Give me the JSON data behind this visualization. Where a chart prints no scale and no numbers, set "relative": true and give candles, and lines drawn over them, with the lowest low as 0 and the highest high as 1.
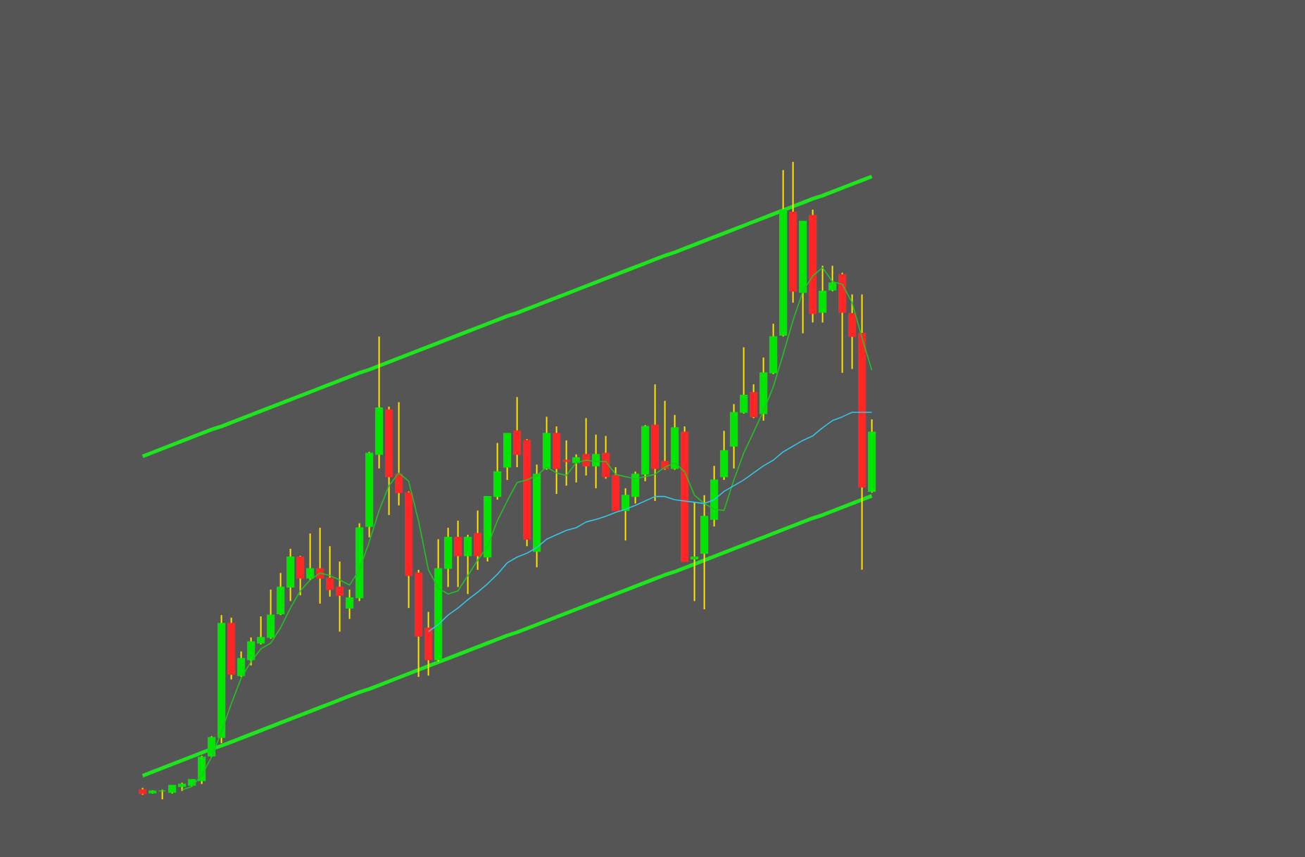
{
  "chart_data": {
    "type": "candlestick",
    "relative": true,
    "categories": [
      null,
      null,
      null,
      null,
      null,
      null,
      null,
      null,
      null,
      null,
      null,
      null,
      null,
      null,
      null,
      null,
      null,
      null,
      null,
      null,
      null,
      null,
      null,
      null,
      null,
      null,
      null,
      null,
      null,
      null,
      null,
      null,
      null,
      null,
      null,
      null,
      null,
      null,
      null,
      null,
      null,
      null,
      null,
      null,
      null,
      null,
      null,
      null,
      null,
      null,
      null,
      null,
      null,
      null,
      null,
      null,
      null,
      null,
      null,
      null,
      null,
      null,
      null,
      null,
      null,
      null,
      null,
      null,
      null,
      null,
      null,
      null,
      null,
      null,
      null
    ],
    "ohlc": [
      [
        0.015,
        0.018,
        0.007,
        0.009
      ],
      [
        0.01,
        0.014,
        0.009,
        0.013
      ],
      [
        0.013,
        0.015,
        0.0,
        0.013
      ],
      [
        0.011,
        0.022,
        0.009,
        0.022
      ],
      [
        0.02,
        0.026,
        0.013,
        0.024
      ],
      [
        0.022,
        0.031,
        0.02,
        0.031
      ],
      [
        0.029,
        0.068,
        0.024,
        0.066
      ],
      [
        0.068,
        0.099,
        0.066,
        0.097
      ],
      [
        0.097,
        0.289,
        0.088,
        0.276
      ],
      [
        0.276,
        0.285,
        0.188,
        0.196
      ],
      [
        0.194,
        0.232,
        0.192,
        0.221
      ],
      [
        0.219,
        0.254,
        0.21,
        0.247
      ],
      [
        0.245,
        0.287,
        0.243,
        0.254
      ],
      [
        0.254,
        0.329,
        0.252,
        0.289
      ],
      [
        0.291,
        0.355,
        0.289,
        0.333
      ],
      [
        0.333,
        0.393,
        0.311,
        0.38
      ],
      [
        0.38,
        0.382,
        0.32,
        0.347
      ],
      [
        0.347,
        0.417,
        0.344,
        0.362
      ],
      [
        0.362,
        0.426,
        0.307,
        0.347
      ],
      [
        0.347,
        0.397,
        0.318,
        0.329
      ],
      [
        0.333,
        0.373,
        0.263,
        0.32
      ],
      [
        0.3,
        0.329,
        0.283,
        0.316
      ],
      [
        0.316,
        0.433,
        0.311,
        0.426
      ],
      [
        0.428,
        0.545,
        0.411,
        0.543
      ],
      [
        0.541,
        0.726,
        0.519,
        0.614
      ],
      [
        0.611,
        0.616,
        0.446,
        0.506
      ],
      [
        0.51,
        0.623,
        0.461,
        0.481
      ],
      [
        0.481,
        0.483,
        0.3,
        0.351
      ],
      [
        0.355,
        0.36,
        0.192,
        0.256
      ],
      [
        0.269,
        0.294,
        0.194,
        0.219
      ],
      [
        0.219,
        0.408,
        0.216,
        0.362
      ],
      [
        0.362,
        0.426,
        0.333,
        0.411
      ],
      [
        0.411,
        0.437,
        0.333,
        0.382
      ],
      [
        0.382,
        0.415,
        0.322,
        0.411
      ],
      [
        0.417,
        0.453,
        0.36,
        0.382
      ],
      [
        0.38,
        0.475,
        0.373,
        0.475
      ],
      [
        0.475,
        0.559,
        0.47,
        0.514
      ],
      [
        0.521,
        0.574,
        0.501,
        0.574
      ],
      [
        0.578,
        0.631,
        0.521,
        0.541
      ],
      [
        0.563,
        0.565,
        0.397,
        0.408
      ],
      [
        0.389,
        0.525,
        0.364,
        0.51
      ],
      [
        0.519,
        0.6,
        0.517,
        0.574
      ],
      [
        0.574,
        0.585,
        0.479,
        0.519
      ],
      [
        0.532,
        0.563,
        0.492,
        0.53
      ],
      [
        0.528,
        0.541,
        0.497,
        0.536
      ],
      [
        0.541,
        0.598,
        0.508,
        0.523
      ],
      [
        0.523,
        0.572,
        0.488,
        0.541
      ],
      [
        0.543,
        0.57,
        0.503,
        0.506
      ],
      [
        0.508,
        0.521,
        0.453,
        0.453
      ],
      [
        0.453,
        0.488,
        0.406,
        0.477
      ],
      [
        0.475,
        0.514,
        0.464,
        0.51
      ],
      [
        0.51,
        0.587,
        0.499,
        0.585
      ],
      [
        0.587,
        0.651,
        0.468,
        0.519
      ],
      [
        0.53,
        0.625,
        0.517,
        0.519
      ],
      [
        0.519,
        0.603,
        0.517,
        0.583
      ],
      [
        0.576,
        0.585,
        0.373,
        0.373
      ],
      [
        0.377,
        0.466,
        0.311,
        0.38
      ],
      [
        0.386,
        0.477,
        0.298,
        0.444
      ],
      [
        0.439,
        0.523,
        0.428,
        0.501
      ],
      [
        0.506,
        0.578,
        0.501,
        0.547
      ],
      [
        0.554,
        0.62,
        0.519,
        0.607
      ],
      [
        0.607,
        0.709,
        0.605,
        0.634
      ],
      [
        0.638,
        0.651,
        0.598,
        0.6
      ],
      [
        0.605,
        0.693,
        0.594,
        0.669
      ],
      [
        0.669,
        0.746,
        0.667,
        0.726
      ],
      [
        0.728,
        0.987,
        0.726,
        0.925
      ],
      [
        0.921,
        1.0,
        0.779,
        0.797
      ],
      [
        0.795,
        0.907,
        0.731,
        0.907
      ],
      [
        0.916,
        0.925,
        0.748,
        0.762
      ],
      [
        0.764,
        0.837,
        0.748,
        0.797
      ],
      [
        0.799,
        0.837,
        0.797,
        0.81
      ],
      [
        0.823,
        0.826,
        0.669,
        0.764
      ],
      [
        0.762,
        0.792,
        0.675,
        0.726
      ],
      [
        0.731,
        0.792,
        0.36,
        0.49
      ],
      [
        0.483,
        0.596,
        0.481,
        0.576
      ]
    ],
    "colors": [
      "#ff2626",
      "#00e600",
      "#00e600",
      "#00e600",
      "#00e600",
      "#00e600",
      "#00e600",
      "#00e600",
      "#00e600",
      "#ff2626",
      "#00e600",
      "#00e600",
      "#00e600",
      "#00e600",
      "#00e600",
      "#00e600",
      "#ff2626",
      "#00e600",
      "#ff2626",
      "#ff2626",
      "#ff2626",
      "#00e600",
      "#00e600",
      "#00e600",
      "#00e600",
      "#ff2626",
      "#ff2626",
      "#ff2626",
      "#ff2626",
      "#ff2626",
      "#00e600",
      "#00e600",
      "#ff2626",
      "#00e600",
      "#ff2626",
      "#00e600",
      "#00e600",
      "#00e600",
      "#ff2626",
      "#ff2626",
      "#00e600",
      "#00e600",
      "#ff2626",
      "#ff2626",
      "#00e600",
      "#ff2626",
      "#00e600",
      "#ff2626",
      "#ff2626",
      "#00e600",
      "#00e600",
      "#00e600",
      "#ff2626",
      "#ff2626",
      "#00e600",
      "#ff2626",
      "#00e600",
      "#00e600",
      "#00e600",
      "#00e600",
      "#00e600",
      "#00e600",
      "#ff2626",
      "#00e600",
      "#00e600",
      "#00e600",
      "#ff2626",
      "#00e600",
      "#ff2626",
      "#00e600",
      "#00e600",
      "#ff2626",
      "#ff2626",
      "#ff2626",
      "#00e600"
    ],
    "series": [
      {
        "type": "line",
        "color": "#1ee61e",
        "values": [
          0.538,
          0.544,
          0.55,
          0.556,
          0.562,
          0.568,
          0.574,
          0.58,
          0.585,
          0.591,
          0.597,
          0.603,
          0.609,
          0.615,
          0.621,
          0.627,
          0.633,
          0.639,
          0.645,
          0.651,
          0.657,
          0.663,
          0.669,
          0.674,
          0.68,
          0.686,
          0.692,
          0.698,
          0.704,
          0.71,
          0.716,
          0.722,
          0.728,
          0.734,
          0.74,
          0.746,
          0.752,
          0.758,
          0.763,
          0.769,
          0.775,
          0.781,
          0.787,
          0.793,
          0.799,
          0.805,
          0.811,
          0.817,
          0.823,
          0.829,
          0.835,
          0.841,
          0.847,
          0.853,
          0.858,
          0.864,
          0.87,
          0.876,
          0.882,
          0.888,
          0.894,
          0.9,
          0.906,
          0.912,
          0.918,
          0.924,
          0.93,
          0.936,
          0.942,
          0.947,
          0.953,
          0.959,
          0.965,
          0.971,
          0.977
        ]
      },
      {
        "type": "line",
        "color": "#1ee61e",
        "values": [
          0.037,
          0.043,
          0.049,
          0.055,
          0.061,
          0.067,
          0.073,
          0.079,
          0.084,
          0.09,
          0.096,
          0.102,
          0.108,
          0.114,
          0.12,
          0.126,
          0.132,
          0.138,
          0.144,
          0.15,
          0.156,
          0.162,
          0.168,
          0.173,
          0.179,
          0.185,
          0.191,
          0.197,
          0.203,
          0.209,
          0.215,
          0.221,
          0.227,
          0.233,
          0.239,
          0.245,
          0.251,
          0.257,
          0.262,
          0.268,
          0.274,
          0.28,
          0.286,
          0.292,
          0.298,
          0.304,
          0.31,
          0.316,
          0.322,
          0.328,
          0.334,
          0.34,
          0.346,
          0.352,
          0.357,
          0.363,
          0.369,
          0.375,
          0.381,
          0.387,
          0.393,
          0.399,
          0.405,
          0.411,
          0.417,
          0.423,
          0.429,
          0.435,
          0.441,
          0.446,
          0.452,
          0.458,
          0.464,
          0.47,
          0.476
        ]
      },
      {
        "type": "line",
        "color": "#22c322",
        "values": [
          null,
          null,
          null,
          null,
          0.015,
          0.02,
          0.038,
          0.066,
          0.106,
          0.15,
          0.19,
          0.216,
          0.236,
          0.245,
          0.269,
          0.3,
          0.327,
          0.344,
          0.355,
          0.351,
          0.344,
          0.336,
          0.36,
          0.404,
          0.453,
          0.492,
          0.512,
          0.499,
          0.437,
          0.36,
          0.331,
          0.322,
          0.327,
          0.351,
          0.375,
          0.397,
          0.437,
          0.468,
          0.497,
          0.501,
          0.508,
          0.521,
          0.512,
          0.508,
          0.528,
          0.532,
          0.53,
          0.53,
          0.51,
          0.506,
          0.503,
          0.506,
          0.51,
          0.521,
          0.528,
          0.514,
          0.477,
          0.464,
          0.455,
          0.453,
          0.501,
          0.543,
          0.576,
          0.609,
          0.647,
          0.698,
          0.751,
          0.797,
          0.821,
          0.834,
          0.812,
          0.808,
          0.779,
          0.724,
          0.673
        ]
      },
      {
        "type": "line",
        "color": "#33c8e8",
        "values": [
          null,
          null,
          null,
          null,
          null,
          null,
          null,
          null,
          null,
          null,
          null,
          null,
          null,
          null,
          null,
          null,
          null,
          null,
          null,
          null,
          null,
          null,
          null,
          null,
          null,
          null,
          null,
          null,
          null,
          0.263,
          0.274,
          0.289,
          0.3,
          0.313,
          0.325,
          0.338,
          0.353,
          0.371,
          0.38,
          0.386,
          0.395,
          0.408,
          0.415,
          0.422,
          0.426,
          0.435,
          0.439,
          0.444,
          0.45,
          0.455,
          0.461,
          0.468,
          0.475,
          0.475,
          0.47,
          0.468,
          0.466,
          0.464,
          0.47,
          0.483,
          0.492,
          0.501,
          0.512,
          0.523,
          0.532,
          0.545,
          0.554,
          0.563,
          0.57,
          0.583,
          0.594,
          0.6,
          0.607,
          0.607,
          0.607
        ]
      }
    ]
  }
}
